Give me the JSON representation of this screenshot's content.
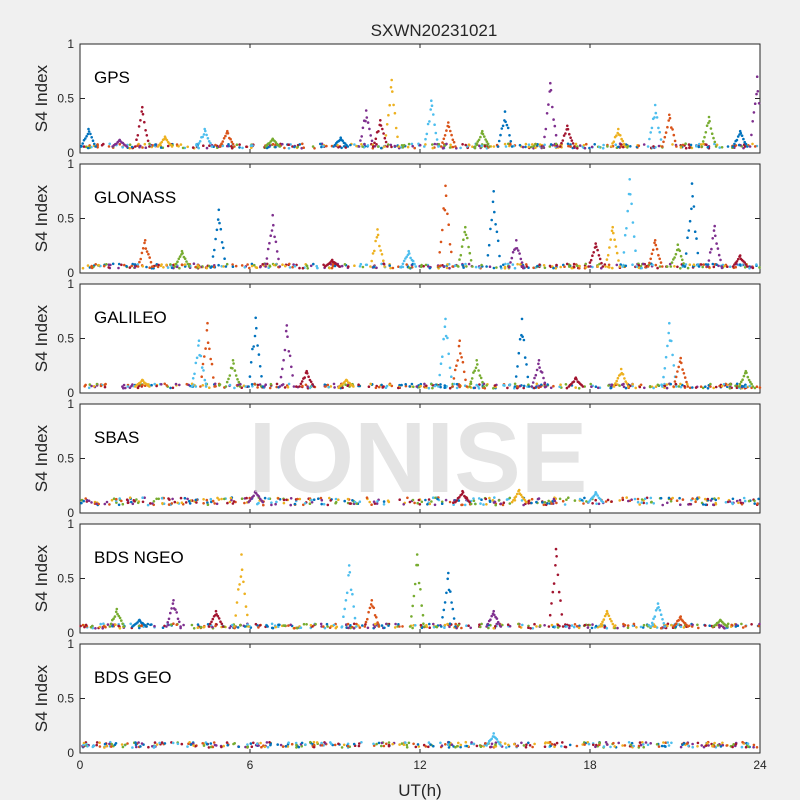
{
  "figure": {
    "title": "SXWN20231021",
    "xlabel": "UT(h)",
    "watermark": "IONISE"
  },
  "chart_data": [
    {
      "type": "scatter",
      "panel_label": "GPS",
      "ylabel": "S4 Index",
      "xlim": [
        0,
        24
      ],
      "ylim": [
        0,
        1
      ],
      "xticks": [
        0,
        6,
        12,
        18,
        24
      ],
      "yticks": [
        0,
        0.5,
        1
      ],
      "xticklabels_shown": false,
      "baseline": 0.06,
      "spikes": [
        [
          0.3,
          0.22
        ],
        [
          1.4,
          0.12
        ],
        [
          2.2,
          0.42
        ],
        [
          3.0,
          0.15
        ],
        [
          4.4,
          0.22
        ],
        [
          5.2,
          0.2
        ],
        [
          6.8,
          0.13
        ],
        [
          9.2,
          0.14
        ],
        [
          10.1,
          0.39
        ],
        [
          10.6,
          0.3
        ],
        [
          11.0,
          0.67
        ],
        [
          12.4,
          0.48
        ],
        [
          13.0,
          0.28
        ],
        [
          14.2,
          0.2
        ],
        [
          15.0,
          0.38
        ],
        [
          16.6,
          0.64
        ],
        [
          17.2,
          0.25
        ],
        [
          19.0,
          0.22
        ],
        [
          20.3,
          0.44
        ],
        [
          20.8,
          0.35
        ],
        [
          22.2,
          0.33
        ],
        [
          23.3,
          0.2
        ],
        [
          23.9,
          0.7
        ]
      ]
    },
    {
      "type": "scatter",
      "panel_label": "GLONASS",
      "ylabel": "S4 Index",
      "xlim": [
        0,
        24
      ],
      "ylim": [
        0,
        1
      ],
      "xticks": [
        0,
        6,
        12,
        18,
        24
      ],
      "yticks": [
        0,
        0.5,
        1
      ],
      "xticklabels_shown": false,
      "baseline": 0.06,
      "spikes": [
        [
          2.3,
          0.3
        ],
        [
          3.6,
          0.2
        ],
        [
          4.9,
          0.58
        ],
        [
          6.8,
          0.53
        ],
        [
          8.9,
          0.12
        ],
        [
          10.5,
          0.4
        ],
        [
          11.6,
          0.2
        ],
        [
          12.9,
          0.8
        ],
        [
          13.6,
          0.42
        ],
        [
          14.6,
          0.75
        ],
        [
          15.4,
          0.3
        ],
        [
          18.2,
          0.27
        ],
        [
          18.8,
          0.42
        ],
        [
          19.4,
          0.86
        ],
        [
          20.3,
          0.3
        ],
        [
          21.1,
          0.26
        ],
        [
          21.6,
          0.82
        ],
        [
          22.4,
          0.43
        ],
        [
          23.3,
          0.16
        ]
      ]
    },
    {
      "type": "scatter",
      "panel_label": "GALILEO",
      "ylabel": "S4 Index",
      "xlim": [
        0,
        24
      ],
      "ylim": [
        0,
        1
      ],
      "xticks": [
        0,
        6,
        12,
        18,
        24
      ],
      "yticks": [
        0,
        0.5,
        1
      ],
      "xticklabels_shown": false,
      "baseline": 0.06,
      "spikes": [
        [
          2.2,
          0.12
        ],
        [
          4.2,
          0.48
        ],
        [
          4.5,
          0.64
        ],
        [
          5.4,
          0.3
        ],
        [
          6.2,
          0.69
        ],
        [
          7.3,
          0.62
        ],
        [
          8.0,
          0.2
        ],
        [
          9.4,
          0.12
        ],
        [
          12.9,
          0.68
        ],
        [
          13.4,
          0.48
        ],
        [
          14.0,
          0.3
        ],
        [
          15.6,
          0.68
        ],
        [
          16.2,
          0.3
        ],
        [
          17.5,
          0.14
        ],
        [
          19.1,
          0.22
        ],
        [
          20.8,
          0.64
        ],
        [
          21.2,
          0.32
        ],
        [
          23.5,
          0.2
        ]
      ]
    },
    {
      "type": "scatter",
      "panel_label": "SBAS",
      "ylabel": "S4 Index",
      "xlim": [
        0,
        24
      ],
      "ylim": [
        0,
        1
      ],
      "xticks": [
        0,
        6,
        12,
        18,
        24
      ],
      "yticks": [
        0,
        0.5,
        1
      ],
      "xticklabels_shown": false,
      "baseline": 0.1,
      "spikes": [
        [
          6.2,
          0.2
        ],
        [
          13.5,
          0.2
        ],
        [
          15.5,
          0.21
        ],
        [
          18.2,
          0.19
        ]
      ]
    },
    {
      "type": "scatter",
      "panel_label": "BDS NGEO",
      "ylabel": "S4 Index",
      "xlim": [
        0,
        24
      ],
      "ylim": [
        0,
        1
      ],
      "xticks": [
        0,
        6,
        12,
        18,
        24
      ],
      "yticks": [
        0,
        0.5,
        1
      ],
      "xticklabels_shown": false,
      "baseline": 0.06,
      "spikes": [
        [
          1.3,
          0.22
        ],
        [
          2.1,
          0.12
        ],
        [
          3.3,
          0.3
        ],
        [
          4.8,
          0.2
        ],
        [
          5.7,
          0.72
        ],
        [
          9.5,
          0.62
        ],
        [
          10.3,
          0.3
        ],
        [
          11.9,
          0.72
        ],
        [
          13.0,
          0.55
        ],
        [
          14.6,
          0.2
        ],
        [
          16.8,
          0.77
        ],
        [
          18.6,
          0.2
        ],
        [
          20.4,
          0.27
        ],
        [
          21.2,
          0.15
        ],
        [
          22.6,
          0.12
        ]
      ]
    },
    {
      "type": "scatter",
      "panel_label": "BDS GEO",
      "ylabel": "S4 Index",
      "xlim": [
        0,
        24
      ],
      "ylim": [
        0,
        1
      ],
      "xticks": [
        0,
        6,
        12,
        18,
        24
      ],
      "yticks": [
        0,
        0.5,
        1
      ],
      "xticklabels_shown": true,
      "baseline": 0.07,
      "spikes": [
        [
          14.6,
          0.18
        ]
      ]
    }
  ],
  "series_colors": [
    "#0072BD",
    "#D95319",
    "#EDB120",
    "#7E2F8E",
    "#77AC30",
    "#4DBEEE",
    "#A2142F"
  ]
}
